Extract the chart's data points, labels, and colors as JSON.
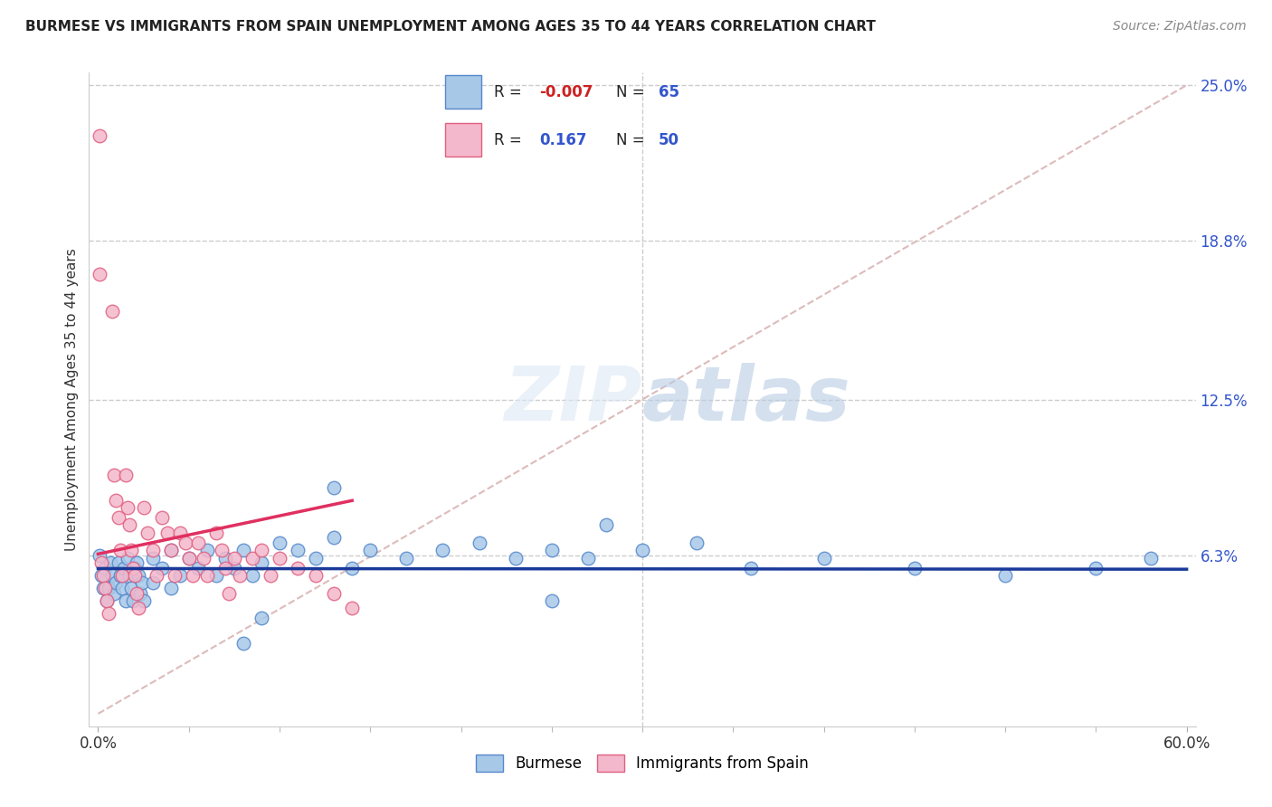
{
  "title": "BURMESE VS IMMIGRANTS FROM SPAIN UNEMPLOYMENT AMONG AGES 35 TO 44 YEARS CORRELATION CHART",
  "source": "Source: ZipAtlas.com",
  "ylabel": "Unemployment Among Ages 35 to 44 years",
  "xmin": 0.0,
  "xmax": 0.6,
  "ymin": 0.0,
  "ymax": 0.25,
  "legend1_label": "Burmese",
  "legend2_label": "Immigrants from Spain",
  "R1": -0.007,
  "N1": 65,
  "R2": 0.167,
  "N2": 50,
  "burmese_color": "#a8c8e8",
  "spain_color": "#f4b8cc",
  "burmese_edge": "#5588cc",
  "spain_edge": "#e06080",
  "trend_blue": "#1a3a9a",
  "trend_pink": "#e03060",
  "diagonal_color": "#ddbbbb",
  "y_tick_vals": [
    0.063,
    0.125,
    0.188,
    0.25
  ],
  "y_tick_labels": [
    "6.3%",
    "12.5%",
    "18.8%",
    "25.0%"
  ],
  "blue_scatter_x": [
    0.001,
    0.002,
    0.003,
    0.004,
    0.005,
    0.006,
    0.007,
    0.008,
    0.009,
    0.01,
    0.011,
    0.012,
    0.013,
    0.014,
    0.015,
    0.016,
    0.017,
    0.018,
    0.019,
    0.02,
    0.021,
    0.022,
    0.023,
    0.024,
    0.025,
    0.03,
    0.03,
    0.035,
    0.04,
    0.04,
    0.045,
    0.05,
    0.055,
    0.06,
    0.065,
    0.07,
    0.075,
    0.08,
    0.085,
    0.09,
    0.1,
    0.11,
    0.12,
    0.13,
    0.14,
    0.15,
    0.17,
    0.19,
    0.21,
    0.23,
    0.25,
    0.27,
    0.3,
    0.33,
    0.36,
    0.4,
    0.45,
    0.5,
    0.55,
    0.58,
    0.08,
    0.09,
    0.13,
    0.28,
    0.25
  ],
  "blue_scatter_y": [
    0.063,
    0.055,
    0.05,
    0.058,
    0.045,
    0.05,
    0.06,
    0.055,
    0.048,
    0.052,
    0.06,
    0.055,
    0.05,
    0.058,
    0.045,
    0.062,
    0.055,
    0.05,
    0.045,
    0.058,
    0.06,
    0.055,
    0.048,
    0.052,
    0.045,
    0.062,
    0.052,
    0.058,
    0.065,
    0.05,
    0.055,
    0.062,
    0.058,
    0.065,
    0.055,
    0.062,
    0.058,
    0.065,
    0.055,
    0.06,
    0.068,
    0.065,
    0.062,
    0.07,
    0.058,
    0.065,
    0.062,
    0.065,
    0.068,
    0.062,
    0.065,
    0.062,
    0.065,
    0.068,
    0.058,
    0.062,
    0.058,
    0.055,
    0.058,
    0.062,
    0.028,
    0.038,
    0.09,
    0.075,
    0.045
  ],
  "pink_scatter_x": [
    0.001,
    0.001,
    0.002,
    0.003,
    0.004,
    0.005,
    0.006,
    0.008,
    0.009,
    0.01,
    0.011,
    0.012,
    0.013,
    0.015,
    0.016,
    0.017,
    0.018,
    0.019,
    0.02,
    0.021,
    0.022,
    0.025,
    0.027,
    0.03,
    0.032,
    0.035,
    0.038,
    0.04,
    0.042,
    0.045,
    0.048,
    0.05,
    0.052,
    0.055,
    0.058,
    0.06,
    0.065,
    0.068,
    0.07,
    0.072,
    0.075,
    0.078,
    0.085,
    0.09,
    0.095,
    0.1,
    0.11,
    0.12,
    0.13,
    0.14
  ],
  "pink_scatter_y": [
    0.23,
    0.175,
    0.06,
    0.055,
    0.05,
    0.045,
    0.04,
    0.16,
    0.095,
    0.085,
    0.078,
    0.065,
    0.055,
    0.095,
    0.082,
    0.075,
    0.065,
    0.058,
    0.055,
    0.048,
    0.042,
    0.082,
    0.072,
    0.065,
    0.055,
    0.078,
    0.072,
    0.065,
    0.055,
    0.072,
    0.068,
    0.062,
    0.055,
    0.068,
    0.062,
    0.055,
    0.072,
    0.065,
    0.058,
    0.048,
    0.062,
    0.055,
    0.062,
    0.065,
    0.055,
    0.062,
    0.058,
    0.055,
    0.048,
    0.042
  ]
}
